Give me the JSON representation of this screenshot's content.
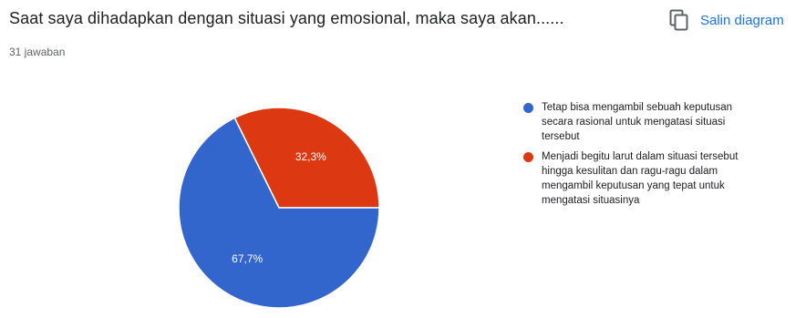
{
  "question": "Saat saya dihadapkan dengan situasi yang emosional, maka saya akan......",
  "response_count": "31 jawaban",
  "copy_button": {
    "label": "Salin diagram",
    "icon": "copy-icon"
  },
  "colors": {
    "accent": "#1a73e8",
    "slice_1": "#3366cc",
    "slice_2": "#dc3912"
  },
  "chart_data": {
    "type": "pie",
    "title": "Saat saya dihadapkan dengan situasi yang emosional, maka saya akan......",
    "legend_position": "right",
    "slices": [
      {
        "label": "Tetap bisa mengambil sebuah keputusan secara rasional untuk mengatasi situasi tersebut",
        "value": 67.7,
        "display": "67,7%",
        "color": "#3366cc"
      },
      {
        "label": "Menjadi begitu larut dalam situasi tersebut hingga kesulitan dan ragu-ragu dalam mengambil keputusan yang tepat untuk mengatasi situasinya",
        "value": 32.3,
        "display": "32,3%",
        "color": "#dc3912"
      }
    ]
  }
}
